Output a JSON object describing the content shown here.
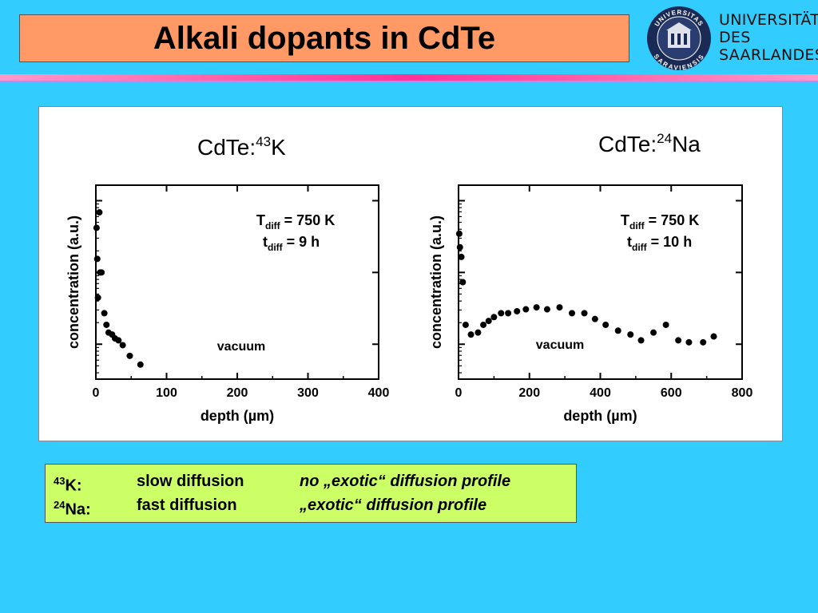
{
  "slide": {
    "title": "Alkali dopants in CdTe"
  },
  "logo": {
    "name_lines": [
      "UNIVERSITÄT",
      "DES",
      "SAARLANDES"
    ],
    "seal_text": "UNIVERSITAS SARAVIENSIS",
    "seal_icon": "university-seal-icon"
  },
  "chart_data": [
    {
      "type": "scatter",
      "title": "CdTe:K",
      "title_prefix": "CdTe:",
      "title_isotope_mass": "43",
      "title_element": "K",
      "xlabel": "depth  (µm)",
      "ylabel": "concentration  (a.u.)",
      "xlim": [
        0,
        400
      ],
      "xticks": [
        0,
        100,
        200,
        300,
        400
      ],
      "y_scale": "log",
      "y_tick_labels": "none",
      "annotation_T_symbol": "T",
      "annotation_T_sub": "diff",
      "annotation_T_value": " = 750 K",
      "annotation_t_symbol": "t",
      "annotation_t_sub": "diff",
      "annotation_t_value": " = 9 h",
      "region_label": "vacuum",
      "points": [
        {
          "x": 1,
          "y": 0.78
        },
        {
          "x": 2,
          "y": 0.62
        },
        {
          "x": 3,
          "y": 0.42
        },
        {
          "x": 5,
          "y": 0.86
        },
        {
          "x": 6,
          "y": 0.55
        },
        {
          "x": 8,
          "y": 0.55
        },
        {
          "x": 12,
          "y": 0.34
        },
        {
          "x": 15,
          "y": 0.28
        },
        {
          "x": 18,
          "y": 0.24
        },
        {
          "x": 23,
          "y": 0.23
        },
        {
          "x": 27,
          "y": 0.21
        },
        {
          "x": 32,
          "y": 0.2
        },
        {
          "x": 38,
          "y": 0.175
        },
        {
          "x": 48,
          "y": 0.12
        },
        {
          "x": 63,
          "y": 0.075
        }
      ]
    },
    {
      "type": "scatter",
      "title": "CdTe:Na",
      "title_prefix": "CdTe:",
      "title_isotope_mass": "24",
      "title_element": "Na",
      "xlabel": "depth  (µm)",
      "ylabel": "concentration  (a.u.)",
      "xlim": [
        0,
        800
      ],
      "xticks": [
        0,
        200,
        400,
        600,
        800
      ],
      "y_scale": "log",
      "y_tick_labels": "none",
      "annotation_T_symbol": "T",
      "annotation_T_sub": "diff",
      "annotation_T_value": " = 750 K",
      "annotation_t_symbol": "t",
      "annotation_t_sub": "diff",
      "annotation_t_value": " = 10 h",
      "region_label": "vacuum",
      "points": [
        {
          "x": 2,
          "y": 0.75
        },
        {
          "x": 4,
          "y": 0.68
        },
        {
          "x": 8,
          "y": 0.63
        },
        {
          "x": 12,
          "y": 0.5
        },
        {
          "x": 20,
          "y": 0.28
        },
        {
          "x": 35,
          "y": 0.23
        },
        {
          "x": 55,
          "y": 0.24
        },
        {
          "x": 70,
          "y": 0.28
        },
        {
          "x": 85,
          "y": 0.3
        },
        {
          "x": 100,
          "y": 0.32
        },
        {
          "x": 120,
          "y": 0.34
        },
        {
          "x": 140,
          "y": 0.34
        },
        {
          "x": 165,
          "y": 0.35
        },
        {
          "x": 190,
          "y": 0.36
        },
        {
          "x": 220,
          "y": 0.37
        },
        {
          "x": 250,
          "y": 0.36
        },
        {
          "x": 285,
          "y": 0.37
        },
        {
          "x": 320,
          "y": 0.34
        },
        {
          "x": 355,
          "y": 0.34
        },
        {
          "x": 385,
          "y": 0.31
        },
        {
          "x": 415,
          "y": 0.28
        },
        {
          "x": 450,
          "y": 0.25
        },
        {
          "x": 485,
          "y": 0.23
        },
        {
          "x": 515,
          "y": 0.2
        },
        {
          "x": 550,
          "y": 0.24
        },
        {
          "x": 585,
          "y": 0.28
        },
        {
          "x": 620,
          "y": 0.2
        },
        {
          "x": 650,
          "y": 0.19
        },
        {
          "x": 690,
          "y": 0.19
        },
        {
          "x": 720,
          "y": 0.22
        }
      ]
    }
  ],
  "info": {
    "rows": [
      {
        "mass": "43",
        "element": "K:",
        "speed": "slow diffusion",
        "profile": "no „exotic“ diffusion profile"
      },
      {
        "mass": "24",
        "element": "Na:",
        "speed": "fast diffusion",
        "profile": "„exotic“ diffusion profile"
      }
    ]
  },
  "colors": {
    "background": "#33ccff",
    "title_box": "#ff9966",
    "stripe": "#ff3399",
    "info_box": "#ccff66",
    "chart_bg": "#ffffff",
    "marker": "#000000"
  }
}
